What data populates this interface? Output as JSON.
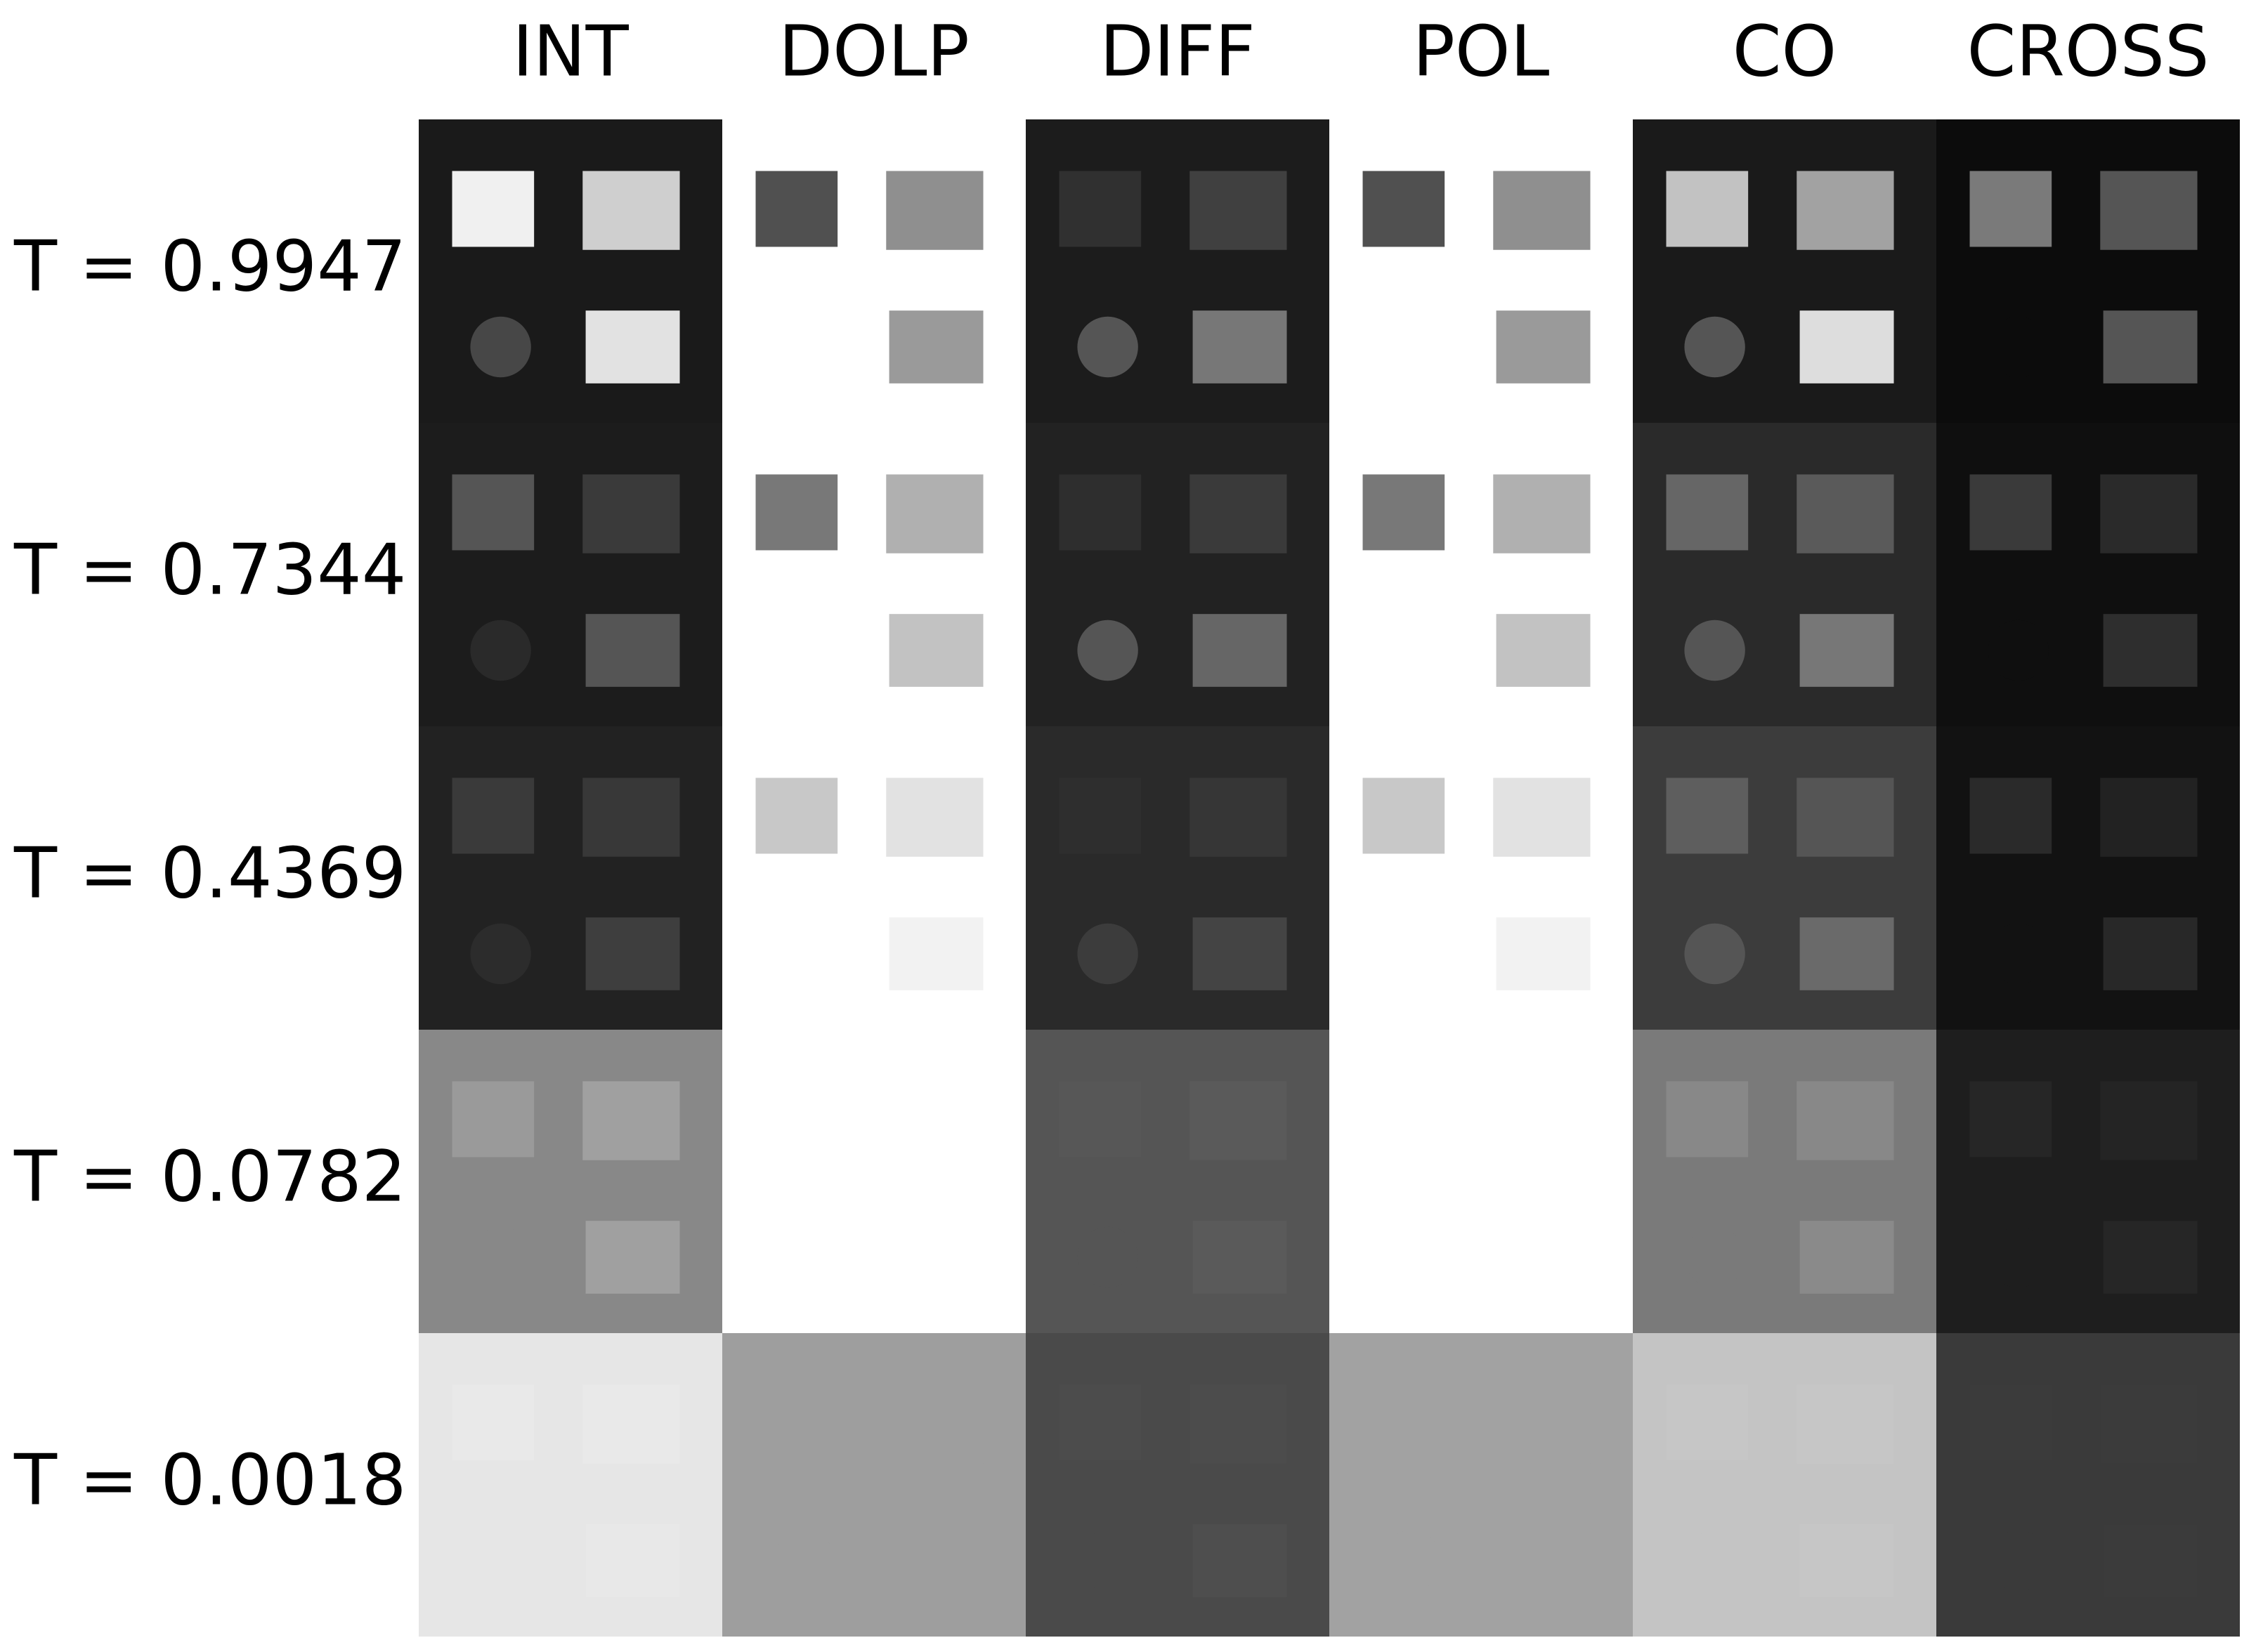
{
  "columns": [
    "INT",
    "DOLP",
    "DIFF",
    "POL",
    "CO",
    "CROSS"
  ],
  "rows": [
    "T = 0.9947",
    "T = 0.7344",
    "T = 0.4369",
    "T = 0.0782",
    "T = 0.0018"
  ]
}
